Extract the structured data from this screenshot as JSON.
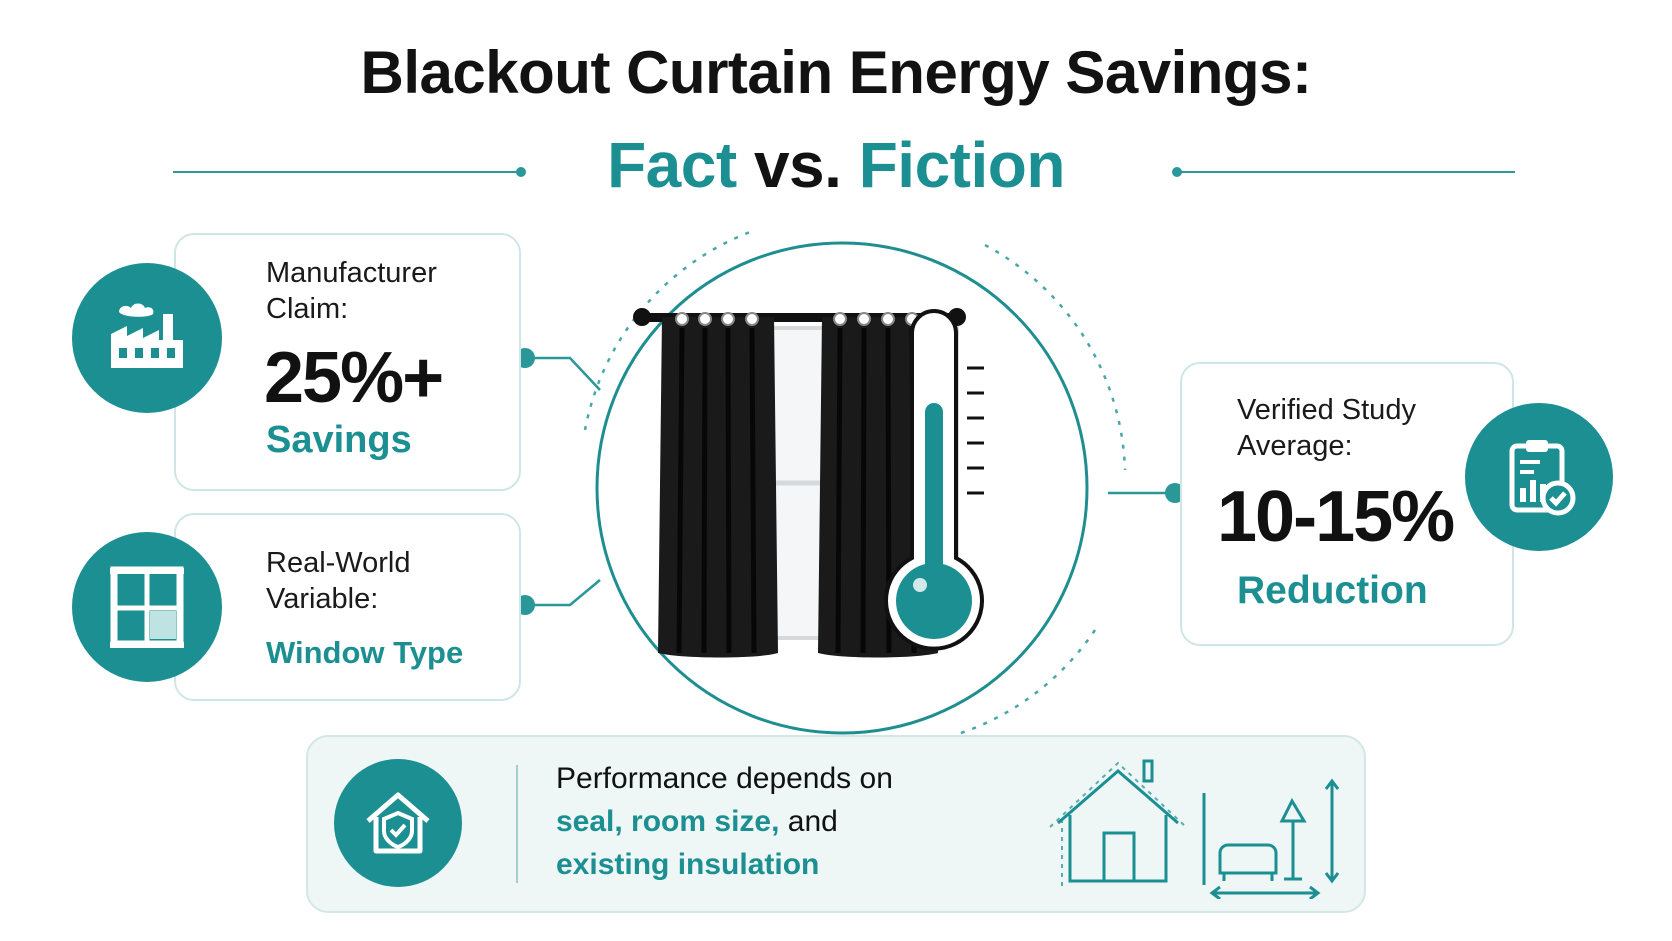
{
  "header": {
    "title": "Blackout Curtain Energy Savings:",
    "subtitle_fact": "Fact",
    "subtitle_vs": "vs.",
    "subtitle_fiction": "Fiction"
  },
  "claim_card": {
    "label_line1": "Manufacturer",
    "label_line2": "Claim:",
    "value": "25%+",
    "unit": "Savings"
  },
  "variable_card": {
    "label_line1": "Real-World",
    "label_line2": "Variable:",
    "value": "Window Type"
  },
  "study_card": {
    "label_line1": "Verified Study",
    "label_line2": "Average:",
    "value": "10-15%",
    "unit": "Reduction"
  },
  "banner": {
    "line1": "Performance depends on",
    "line2_highlight": "seal, room size,",
    "line2_rest": " and",
    "line3": "existing insulation"
  },
  "icons": {
    "claim": "factory-icon",
    "variable": "window-icon",
    "study": "clipboard-chart-icon",
    "banner": "house-shield-icon",
    "center": "curtain-thermometer-icon",
    "room": "room-outline-icon"
  },
  "colors": {
    "accent": "#1b8f91",
    "text": "#121212",
    "card_border": "#cfe6e6",
    "banner_bg": "#eef6f6"
  }
}
